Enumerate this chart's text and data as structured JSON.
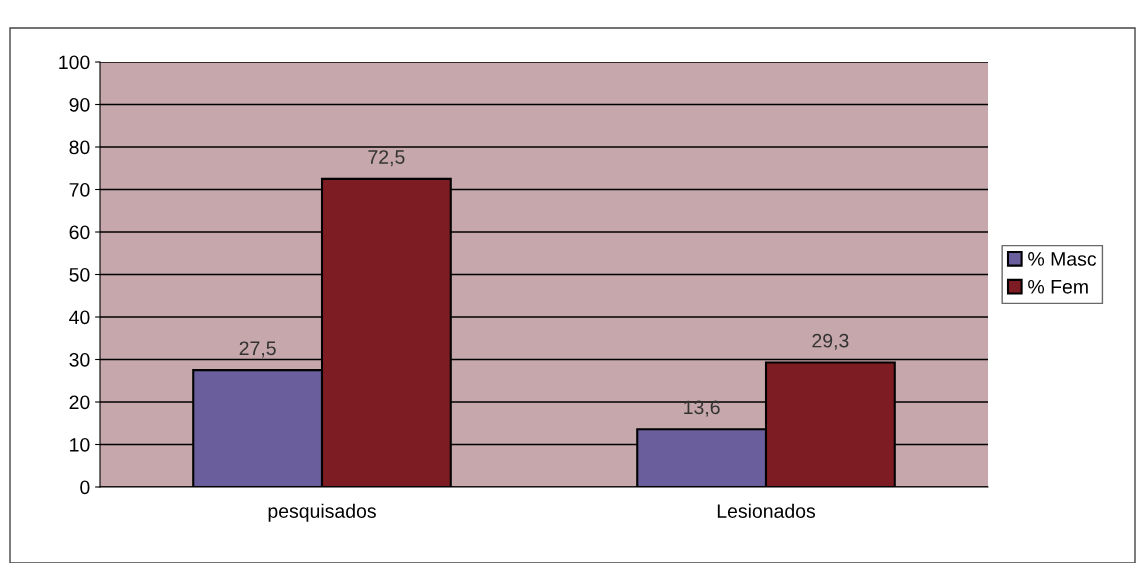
{
  "chart_data": {
    "type": "bar",
    "categories": [
      "pesquisados",
      "Lesionados"
    ],
    "series": [
      {
        "name": "% Masc",
        "color": "#6b5e9c",
        "values": [
          27.5,
          13.6
        ],
        "value_labels": [
          "27,5",
          "13,6"
        ]
      },
      {
        "name": "% Fem",
        "color": "#7d1c22",
        "values": [
          72.5,
          29.3
        ],
        "value_labels": [
          "72,5",
          "29,3"
        ]
      }
    ],
    "ylim": [
      0,
      100
    ],
    "yticks": [
      0,
      10,
      20,
      30,
      40,
      50,
      60,
      70,
      80,
      90,
      100
    ],
    "grid": "y",
    "legend": "right"
  }
}
